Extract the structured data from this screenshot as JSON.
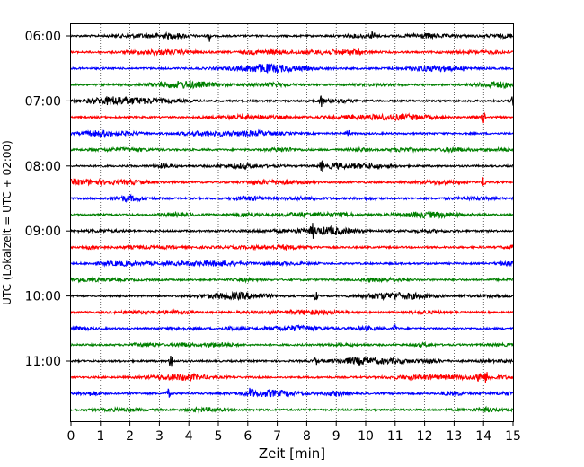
{
  "chart_data": {
    "type": "line",
    "subtype": "helicorder",
    "title": "",
    "xlabel": "Zeit  [min]",
    "ylabel": "UTC (Lokalzeit = UTC + 02:00)",
    "xlim": [
      0,
      15
    ],
    "x_ticks": [
      "0",
      "1",
      "2",
      "3",
      "4",
      "5",
      "6",
      "7",
      "8",
      "9",
      "10",
      "11",
      "12",
      "13",
      "14",
      "15"
    ],
    "y_tick_labels": [
      "06:00",
      "07:00",
      "08:00",
      "09:00",
      "10:00",
      "11:00"
    ],
    "trace_start": "06:00",
    "trace_interval_min": 15,
    "trace_count": 24,
    "trace_colors": [
      "#000000",
      "#ff0000",
      "#0000ff",
      "#008000"
    ],
    "grid": "vertical dotted",
    "spikes": [
      {
        "trace": 0,
        "t": 4.7,
        "a": 6
      },
      {
        "trace": 0,
        "t": 10.25,
        "a": 5
      },
      {
        "trace": 4,
        "t": 8.5,
        "a": 7
      },
      {
        "trace": 4,
        "t": 15.0,
        "a": 6
      },
      {
        "trace": 5,
        "t": 14.0,
        "a": 6
      },
      {
        "trace": 5,
        "t": 13.65,
        "a": 4
      },
      {
        "trace": 6,
        "t": 9.4,
        "a": 5
      },
      {
        "trace": 8,
        "t": 8.5,
        "a": 6
      },
      {
        "trace": 9,
        "t": 14.0,
        "a": 5
      },
      {
        "trace": 12,
        "t": 8.2,
        "a": 6
      },
      {
        "trace": 16,
        "t": 8.3,
        "a": 6
      },
      {
        "trace": 20,
        "t": 3.4,
        "a": 9
      },
      {
        "trace": 20,
        "t": 8.3,
        "a": 4
      },
      {
        "trace": 21,
        "t": 13.85,
        "a": 7
      },
      {
        "trace": 21,
        "t": 14.1,
        "a": 6
      },
      {
        "trace": 22,
        "t": 3.3,
        "a": 5
      },
      {
        "trace": 22,
        "t": 6.1,
        "a": 6
      },
      {
        "trace": 18,
        "t": 11.0,
        "a": 4
      }
    ]
  }
}
